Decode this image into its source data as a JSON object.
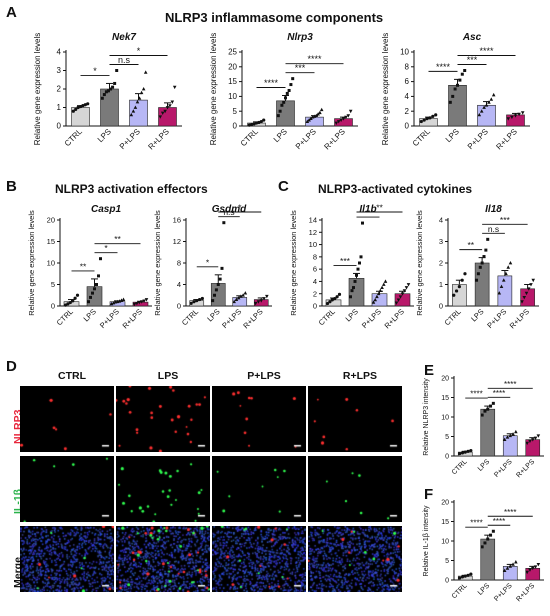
{
  "panels": {
    "A": {
      "letter": "A",
      "title": "NLRP3 inflammasome components"
    },
    "B": {
      "letter": "B",
      "title": "NLRP3 activation effectors"
    },
    "C": {
      "letter": "C",
      "title": "NLRP3-activated cytokines"
    },
    "D": {
      "letter": "D",
      "columns": [
        "CTRL",
        "LPS",
        "P+LPS",
        "R+LPS"
      ],
      "rows": [
        "NLRP3",
        "IL-1β",
        "Merge"
      ],
      "row_colors": [
        "#e8263c",
        "#2ab24a",
        "#111111"
      ]
    },
    "E": {
      "letter": "E"
    },
    "F": {
      "letter": "F"
    }
  },
  "colors": {
    "CTRL": "#d6d6d6",
    "LPS": "#7a7a7a",
    "P+LPS": "#b7b7f5",
    "R+LPS": "#b8186a"
  },
  "chart_data": [
    {
      "type": "bar",
      "title": "Nek7",
      "ylabel": "Relative gene expression levels",
      "categories": [
        "CTRL",
        "LPS",
        "P+LPS",
        "R+LPS"
      ],
      "values": [
        1.0,
        2.0,
        1.4,
        1.0
      ],
      "errors": [
        0.1,
        0.3,
        0.35,
        0.25
      ],
      "ylim": [
        0,
        4
      ],
      "yticks": [
        0,
        1,
        2,
        3,
        4
      ],
      "points": [
        [
          0.8,
          0.9,
          1.0,
          1.05,
          1.1,
          1.15,
          1.2
        ],
        [
          1.5,
          1.7,
          1.85,
          1.9,
          2.0,
          2.1,
          2.3,
          3.0
        ],
        [
          0.6,
          0.8,
          1.0,
          1.3,
          1.5,
          1.8,
          2.0,
          2.9
        ],
        [
          0.5,
          0.7,
          0.8,
          1.0,
          1.1,
          1.3,
          2.1
        ]
      ],
      "sig": [
        {
          "a": 0,
          "b": 1,
          "label": "*"
        },
        {
          "a": 1,
          "b": 2,
          "label": "n.s"
        },
        {
          "a": 1,
          "b": 3,
          "label": "*"
        }
      ]
    },
    {
      "type": "bar",
      "title": "Nlrp3",
      "ylabel": "Relative gene expression levels",
      "categories": [
        "CTRL",
        "LPS",
        "P+LPS",
        "R+LPS"
      ],
      "values": [
        1.0,
        8.5,
        3.0,
        2.5
      ],
      "errors": [
        0.4,
        1.8,
        0.5,
        0.5
      ],
      "ylim": [
        0,
        25
      ],
      "yticks": [
        0,
        5,
        10,
        15,
        20,
        25
      ],
      "points": [
        [
          0.3,
          0.5,
          0.7,
          1.0,
          1.2,
          1.5,
          2.0
        ],
        [
          3.5,
          5.0,
          7.0,
          8.0,
          9.5,
          11.0,
          12.0,
          14.0,
          16.0
        ],
        [
          1.5,
          2.0,
          2.5,
          3.0,
          3.2,
          3.5,
          4.0,
          4.5,
          5.5
        ],
        [
          1.0,
          1.5,
          2.0,
          2.5,
          3.0,
          3.5,
          5.0
        ]
      ],
      "sig": [
        {
          "a": 0,
          "b": 1,
          "label": "****"
        },
        {
          "a": 1,
          "b": 2,
          "label": "***"
        },
        {
          "a": 1,
          "b": 3,
          "label": "****"
        }
      ]
    },
    {
      "type": "bar",
      "title": "Asc",
      "ylabel": "Relative gene expression levels",
      "categories": [
        "CTRL",
        "LPS",
        "P+LPS",
        "R+LPS"
      ],
      "values": [
        1.0,
        5.5,
        2.8,
        1.5
      ],
      "errors": [
        0.2,
        0.8,
        0.5,
        0.2
      ],
      "ylim": [
        0,
        10
      ],
      "yticks": [
        0,
        2,
        4,
        6,
        8,
        10
      ],
      "points": [
        [
          0.6,
          0.8,
          1.0,
          1.1,
          1.3,
          1.5
        ],
        [
          3.2,
          4.0,
          5.0,
          5.5,
          6.2,
          7.0,
          7.5
        ],
        [
          1.5,
          2.0,
          2.5,
          2.8,
          3.2,
          3.6,
          4.2
        ],
        [
          1.0,
          1.2,
          1.4,
          1.6,
          1.8
        ]
      ],
      "sig": [
        {
          "a": 0,
          "b": 1,
          "label": "****"
        },
        {
          "a": 1,
          "b": 2,
          "label": "***"
        },
        {
          "a": 1,
          "b": 3,
          "label": "****"
        }
      ]
    },
    {
      "type": "bar",
      "title": "Casp1",
      "ylabel": "Relative gene expression levels",
      "categories": [
        "CTRL",
        "LPS",
        "P+LPS",
        "R+LPS"
      ],
      "values": [
        1.0,
        4.5,
        1.0,
        0.9
      ],
      "errors": [
        0.5,
        1.8,
        0.2,
        0.2
      ],
      "ylim": [
        0,
        20
      ],
      "yticks": [
        0,
        5,
        10,
        15,
        20
      ],
      "points": [
        [
          0.2,
          0.5,
          0.8,
          1.2,
          1.8,
          2.5
        ],
        [
          1.0,
          2.0,
          3.0,
          4.0,
          5.0,
          7.0,
          11.0
        ],
        [
          0.5,
          0.7,
          0.9,
          1.0,
          1.1,
          1.3,
          1.5
        ],
        [
          0.4,
          0.6,
          0.8,
          1.0,
          1.2,
          1.5
        ]
      ],
      "sig": [
        {
          "a": 0,
          "b": 1,
          "label": "**"
        },
        {
          "a": 1,
          "b": 2,
          "label": "*"
        },
        {
          "a": 1,
          "b": 3,
          "label": "**"
        }
      ]
    },
    {
      "type": "bar",
      "title": "Gsdmd",
      "ylabel": "Relative gene expression levels",
      "categories": [
        "CTRL",
        "LPS",
        "P+LPS",
        "R+LPS"
      ],
      "values": [
        1.0,
        4.2,
        1.6,
        1.2
      ],
      "errors": [
        0.2,
        1.6,
        0.3,
        0.3
      ],
      "ylim": [
        0,
        16
      ],
      "yticks": [
        0,
        4,
        8,
        12,
        16
      ],
      "points": [
        [
          0.5,
          0.8,
          1.0,
          1.2,
          1.4
        ],
        [
          1.0,
          2.0,
          3.0,
          4.0,
          5.0,
          7.0,
          15.5
        ],
        [
          0.8,
          1.2,
          1.5,
          1.8,
          2.0,
          2.4
        ],
        [
          0.5,
          0.8,
          1.0,
          1.4,
          1.8
        ]
      ],
      "sig": [
        {
          "a": 0,
          "b": 1,
          "label": "*"
        },
        {
          "a": 1,
          "b": 2,
          "label": "n.s"
        },
        {
          "a": 1,
          "b": 3,
          "label": "*"
        }
      ]
    },
    {
      "type": "bar",
      "title": "Il1b",
      "ylabel": "Relative gene expression levels",
      "categories": [
        "CTRL",
        "LPS",
        "P+LPS",
        "R+LPS"
      ],
      "values": [
        1.0,
        4.5,
        2.0,
        2.0
      ],
      "errors": [
        0.3,
        0.8,
        0.4,
        0.4
      ],
      "ylim": [
        0,
        14
      ],
      "yticks": [
        0,
        2,
        4,
        6,
        8,
        10,
        12,
        14
      ],
      "points": [
        [
          0.4,
          0.7,
          1.0,
          1.2,
          1.5,
          1.9
        ],
        [
          1.5,
          2.5,
          3.0,
          4.0,
          5.0,
          6.0,
          7.0,
          8.0,
          13.5
        ],
        [
          0.6,
          1.0,
          1.5,
          2.0,
          2.5,
          3.0,
          3.5,
          4.0
        ],
        [
          0.5,
          1.0,
          1.5,
          2.0,
          2.5,
          3.0,
          3.5
        ]
      ],
      "sig": [
        {
          "a": 0,
          "b": 1,
          "label": "***"
        },
        {
          "a": 1,
          "b": 2,
          "label": "*"
        },
        {
          "a": 1,
          "b": 3,
          "label": "**"
        }
      ]
    },
    {
      "type": "bar",
      "title": "Il18",
      "ylabel": "Relative gene expression levels",
      "categories": [
        "CTRL",
        "LPS",
        "P+LPS",
        "R+LPS"
      ],
      "values": [
        1.0,
        2.0,
        1.4,
        0.8
      ],
      "errors": [
        0.2,
        0.25,
        0.25,
        0.2
      ],
      "ylim": [
        0,
        4
      ],
      "yticks": [
        0,
        1,
        2,
        3,
        4
      ],
      "points": [
        [
          0.5,
          0.7,
          0.9,
          1.2,
          1.5
        ],
        [
          1.2,
          1.5,
          1.8,
          2.0,
          2.3,
          2.6,
          3.1
        ],
        [
          0.6,
          0.9,
          1.2,
          1.5,
          1.8,
          2.0
        ],
        [
          0.2,
          0.4,
          0.6,
          0.8,
          1.0,
          1.2
        ]
      ],
      "sig": [
        {
          "a": 0,
          "b": 1,
          "label": "**"
        },
        {
          "a": 1,
          "b": 2,
          "label": "n.s"
        },
        {
          "a": 1,
          "b": 3,
          "label": "***"
        }
      ]
    },
    {
      "type": "bar",
      "title": "",
      "ylabel": "Relative NLRP3 intensity",
      "categories": [
        "CTRL",
        "LPS",
        "P+LPS",
        "R+LPS"
      ],
      "values": [
        1.0,
        12.0,
        5.2,
        4.2
      ],
      "errors": [
        0.2,
        0.8,
        0.5,
        0.5
      ],
      "ylim": [
        0,
        20
      ],
      "yticks": [
        0,
        5,
        10,
        15,
        20
      ],
      "points": [
        [
          0.6,
          0.8,
          1.0,
          1.2,
          1.4
        ],
        [
          10.5,
          11.5,
          12.0,
          12.8,
          13.5
        ],
        [
          4.2,
          4.8,
          5.2,
          5.6,
          6.2
        ],
        [
          3.3,
          3.8,
          4.2,
          4.6,
          5.2
        ]
      ],
      "sig": [
        {
          "a": 0,
          "b": 1,
          "label": "****"
        },
        {
          "a": 1,
          "b": 2,
          "label": "****"
        },
        {
          "a": 1,
          "b": 3,
          "label": "****"
        }
      ]
    },
    {
      "type": "bar",
      "title": "",
      "ylabel": "Relative IL-1β intensity",
      "categories": [
        "CTRL",
        "LPS",
        "P+LPS",
        "R+LPS"
      ],
      "values": [
        1.0,
        10.5,
        3.5,
        3.0
      ],
      "errors": [
        0.2,
        1.0,
        0.5,
        0.5
      ],
      "ylim": [
        0,
        20
      ],
      "yticks": [
        0,
        5,
        10,
        15,
        20
      ],
      "points": [
        [
          0.5,
          0.8,
          1.0,
          1.2,
          1.5
        ],
        [
          8.5,
          9.5,
          10.5,
          11.5,
          12.5
        ],
        [
          2.4,
          3.0,
          3.5,
          4.0,
          4.6
        ],
        [
          2.0,
          2.6,
          3.0,
          3.4,
          4.0
        ]
      ],
      "sig": [
        {
          "a": 0,
          "b": 1,
          "label": "****"
        },
        {
          "a": 1,
          "b": 2,
          "label": "****"
        },
        {
          "a": 1,
          "b": 3,
          "label": "****"
        }
      ]
    }
  ]
}
